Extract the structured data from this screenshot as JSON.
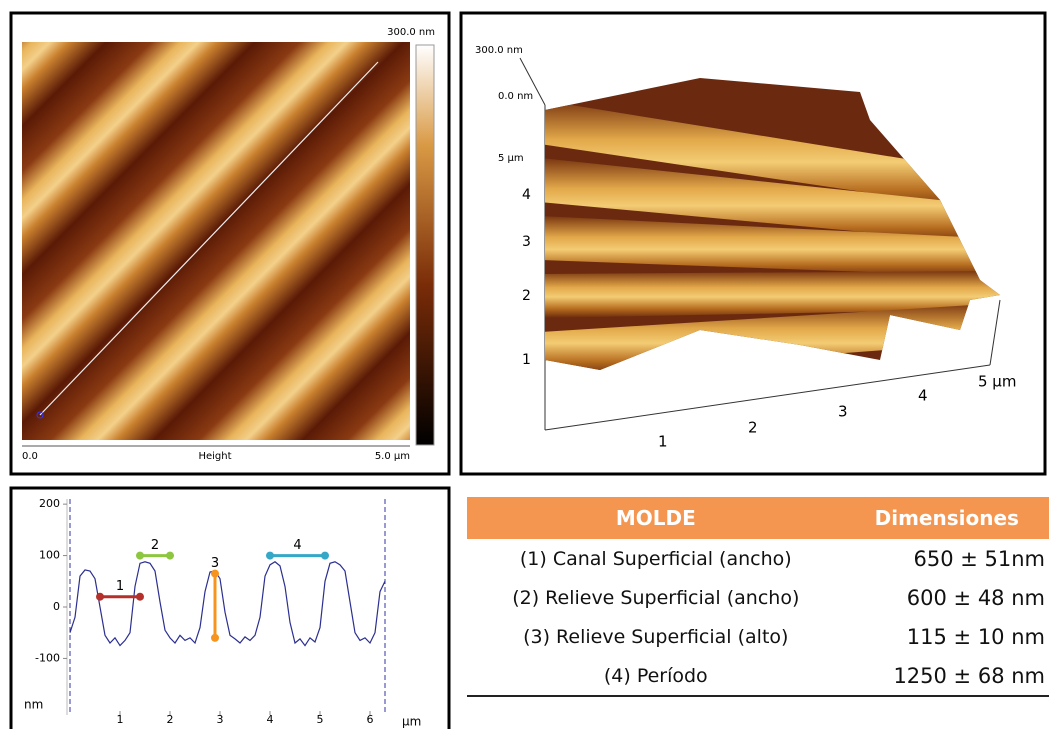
{
  "afm_image": {
    "scale_max": "300.0 nm",
    "x_start": "0.0",
    "x_label": "Height",
    "x_end": "5.0 µm"
  },
  "render_3d": {
    "z_labels": [
      "300.0 nm",
      "0.0 nm"
    ],
    "y_labels": [
      "5 µm",
      "4",
      "3",
      "2",
      "1"
    ],
    "x_labels": [
      "1",
      "2",
      "3",
      "4",
      "5 µm"
    ]
  },
  "chart_data": {
    "type": "line",
    "x_label": "µm",
    "y_label": "nm",
    "color": "#2b2f8f",
    "x": [
      0.0,
      0.1,
      0.2,
      0.3,
      0.4,
      0.5,
      0.6,
      0.7,
      0.8,
      0.9,
      1.0,
      1.1,
      1.2,
      1.3,
      1.4,
      1.5,
      1.6,
      1.7,
      1.8,
      1.9,
      2.0,
      2.1,
      2.2,
      2.3,
      2.4,
      2.5,
      2.6,
      2.7,
      2.8,
      2.9,
      3.0,
      3.1,
      3.2,
      3.3,
      3.4,
      3.5,
      3.6,
      3.7,
      3.8,
      3.9,
      4.0,
      4.1,
      4.2,
      4.3,
      4.4,
      4.5,
      4.6,
      4.7,
      4.8,
      4.9,
      5.0,
      5.1,
      5.2,
      5.3,
      5.4,
      5.5,
      5.6,
      5.7,
      5.8,
      5.9,
      6.0,
      6.1,
      6.2,
      6.3
    ],
    "values": [
      -50,
      -20,
      60,
      72,
      70,
      55,
      0,
      -55,
      -70,
      -60,
      -75,
      -65,
      -50,
      40,
      85,
      88,
      85,
      70,
      10,
      -45,
      -60,
      -70,
      -55,
      -65,
      -60,
      -70,
      -40,
      30,
      68,
      70,
      55,
      -10,
      -55,
      -62,
      -70,
      -58,
      -65,
      -55,
      -20,
      60,
      82,
      88,
      80,
      40,
      -30,
      -70,
      -62,
      -75,
      -60,
      -68,
      -40,
      50,
      85,
      88,
      82,
      70,
      10,
      -50,
      -65,
      -60,
      -70,
      -50,
      30,
      50
    ],
    "xlim": [
      -0.16,
      6.5
    ],
    "ylim": [
      -210,
      210
    ],
    "xticks": [
      1,
      2,
      3,
      4,
      5,
      6
    ],
    "yticks": [
      -100,
      0,
      100,
      200
    ],
    "dashed_lines": [
      0,
      6.3
    ],
    "annotations": [
      {
        "label": "1",
        "x": [
          0.6,
          1.4
        ],
        "y": [
          20,
          20
        ],
        "color": "#b5302a"
      },
      {
        "label": "2",
        "x": [
          1.4,
          2.0
        ],
        "y": [
          100,
          100
        ],
        "color": "#8dc63f"
      },
      {
        "label": "3",
        "x": [
          2.9,
          2.9
        ],
        "y": [
          -60,
          65
        ],
        "color": "#f7941d"
      },
      {
        "label": "4",
        "x": [
          4.0,
          5.1
        ],
        "y": [
          100,
          100
        ],
        "color": "#35a7c7"
      }
    ]
  },
  "table": {
    "header": [
      "MOLDE",
      "Dimensiones"
    ],
    "rows": [
      [
        "(1) Canal Superficial (ancho)",
        "650 ± 51nm"
      ],
      [
        "(2) Relieve Superficial (ancho)",
        "600  ± 48 nm"
      ],
      [
        "(3) Relieve Superficial (alto)",
        "115 ± 10 nm"
      ],
      [
        "(4) Período",
        "1250  ± 68 nm"
      ]
    ]
  }
}
